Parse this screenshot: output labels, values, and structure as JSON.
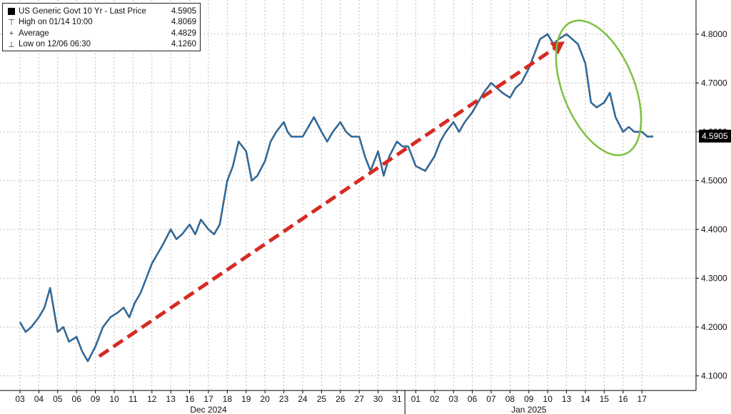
{
  "legend": {
    "title": "US Generic Govt 10 Yr - Last Price",
    "last_price": "4.5905",
    "high_label": "High on 01/14 10:00",
    "high_value": "4.8069",
    "average_label": "Average",
    "average_value": "4.4829",
    "low_label": "Low on 12/06 06:30",
    "low_value": "4.1260"
  },
  "colors": {
    "price_line": "#1a7ed6",
    "price_dark": "#111111",
    "trend_arrow": "#d62a23",
    "highlight_ellipse": "#7dc142",
    "grid": "#bdbdbd",
    "price_tag_bg": "#000000"
  },
  "chart_data": {
    "type": "line",
    "title": "US Generic Govt 10 Yr - Last Price",
    "ylim": [
      4.07,
      4.87
    ],
    "y_ticks": [
      "4.1000",
      "4.2000",
      "4.3000",
      "4.4000",
      "4.5000",
      "4.6000",
      "4.7000",
      "4.8000"
    ],
    "y_axis_side": "right",
    "x_tick_labels": [
      "03",
      "04",
      "05",
      "06",
      "09",
      "10",
      "11",
      "12",
      "13",
      "16",
      "17",
      "18",
      "19",
      "20",
      "23",
      "24",
      "25",
      "26",
      "27",
      "30",
      "31",
      "01",
      "02",
      "03",
      "06",
      "07",
      "08",
      "09",
      "10",
      "13",
      "14",
      "15",
      "16",
      "17"
    ],
    "x_month_labels": [
      {
        "label": "Dec 2024",
        "from_tick": 0
      },
      {
        "label": "Jan 2025",
        "from_tick": 21
      }
    ],
    "grid": true,
    "last_price": 4.5905,
    "series": [
      {
        "x": [
          0,
          0.3,
          0.6,
          1.0,
          1.3,
          1.6,
          2.0,
          2.3,
          2.6,
          3.0,
          3.3,
          3.6,
          4.0,
          4.4,
          4.8,
          5.2,
          5.5,
          5.8,
          6.1,
          6.4,
          6.7,
          7.0,
          7.3,
          7.6,
          8.0,
          8.3,
          8.6,
          9.0,
          9.3,
          9.6,
          10.0,
          10.3,
          10.6,
          11.0,
          11.3,
          11.6,
          12.0,
          12.3,
          12.6,
          13.0,
          13.3,
          13.6,
          14.0,
          14.2,
          14.4,
          14.6,
          15.0,
          15.3,
          15.6,
          16.0,
          16.3,
          16.6,
          17.0,
          17.3,
          17.6,
          18.0,
          18.3,
          18.6,
          19.0,
          19.3,
          19.6,
          20.0,
          20.3,
          20.6,
          21.0,
          21.5,
          22.0,
          22.3,
          22.6,
          23.0,
          23.3,
          23.6,
          24.0,
          24.3,
          24.6,
          25.0,
          25.3,
          25.6,
          26.0,
          26.3,
          26.6,
          27.0,
          27.3,
          27.6,
          28.0,
          28.3,
          28.6,
          29.0,
          29.3,
          29.6,
          30.0,
          30.3,
          30.6,
          31.0,
          31.3,
          31.6,
          32.0,
          32.3,
          32.6,
          33.0,
          33.3,
          33.6
        ],
        "values": [
          4.21,
          4.19,
          4.2,
          4.22,
          4.24,
          4.28,
          4.19,
          4.2,
          4.17,
          4.18,
          4.15,
          4.13,
          4.16,
          4.2,
          4.22,
          4.23,
          4.24,
          4.22,
          4.25,
          4.27,
          4.3,
          4.33,
          4.35,
          4.37,
          4.4,
          4.38,
          4.39,
          4.41,
          4.39,
          4.42,
          4.4,
          4.39,
          4.41,
          4.5,
          4.53,
          4.58,
          4.56,
          4.5,
          4.51,
          4.54,
          4.58,
          4.6,
          4.62,
          4.6,
          4.59,
          4.59,
          4.59,
          4.61,
          4.63,
          4.6,
          4.58,
          4.6,
          4.62,
          4.6,
          4.59,
          4.59,
          4.55,
          4.52,
          4.56,
          4.51,
          4.55,
          4.58,
          4.57,
          4.57,
          4.53,
          4.52,
          4.55,
          4.58,
          4.6,
          4.62,
          4.6,
          4.62,
          4.64,
          4.66,
          4.68,
          4.7,
          4.69,
          4.68,
          4.67,
          4.69,
          4.7,
          4.73,
          4.76,
          4.79,
          4.8,
          4.78,
          4.79,
          4.8,
          4.79,
          4.78,
          4.74,
          4.66,
          4.65,
          4.66,
          4.68,
          4.63,
          4.6,
          4.61,
          4.6,
          4.6,
          4.59,
          4.5905
        ]
      }
    ],
    "annotations": [
      {
        "type": "arrow",
        "from": [
          4.2,
          4.14
        ],
        "to": [
          28.9,
          4.785
        ],
        "style": "dashed",
        "color": "#d62a23"
      },
      {
        "type": "ellipse",
        "center_x": 30.7,
        "center_y": 4.69,
        "color": "#7dc142"
      }
    ]
  }
}
